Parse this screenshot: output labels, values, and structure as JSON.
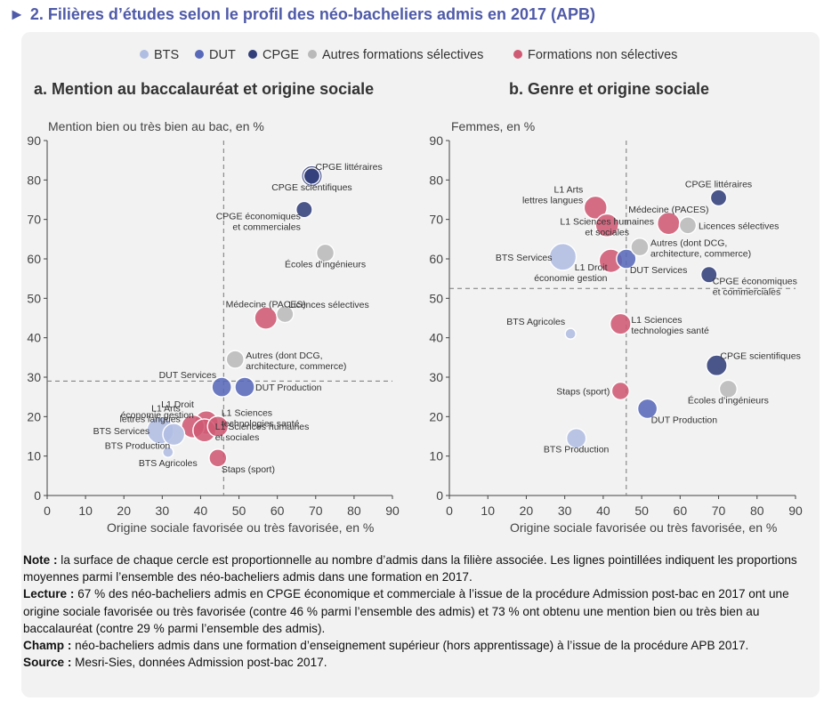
{
  "figure_title": "2. Filières d’études selon le profil des néo-bacheliers admis en 2017 (APB)",
  "legend": [
    {
      "label": "BTS",
      "color": "#b0bde2"
    },
    {
      "label": "DUT",
      "color": "#5869ba"
    },
    {
      "label": "CPGE",
      "color": "#323f7a"
    },
    {
      "label": "Autres formations sélectives",
      "color": "#b9b9b9"
    },
    {
      "label": "Formations non sélectives",
      "color": "#cf5a74"
    }
  ],
  "chart_data": [
    {
      "type": "scatter",
      "title": "a. Mention au baccalauréat et origine sociale",
      "xlabel": "Origine sociale favorisée ou très favorisée, en %",
      "ylabel": "Mention bien ou très bien au bac, en %",
      "xlim": [
        0,
        90
      ],
      "ylim": [
        0,
        90
      ],
      "xticks": [
        "0",
        "10",
        "20",
        "30",
        "40",
        "50",
        "60",
        "70",
        "80",
        "90"
      ],
      "yticks": [
        "0",
        "10",
        "20",
        "30",
        "40",
        "50",
        "60",
        "70",
        "80",
        "90"
      ],
      "ref_x": 46,
      "ref_y": 29,
      "points": [
        {
          "label": "CPGE littéraires",
          "group": "CPGE",
          "x": 69,
          "y": 81,
          "size": 1.1,
          "label_pos": "above-right"
        },
        {
          "label": "CPGE scientifiques",
          "group": "CPGE",
          "x": 69,
          "y": 81,
          "size": 1.8,
          "label_pos": "below"
        },
        {
          "label": "CPGE économiques et commerciales",
          "group": "CPGE",
          "x": 67,
          "y": 72.5,
          "size": 1.1,
          "label_pos": "below-left"
        },
        {
          "label": "Écoles d’ingénieurs",
          "group": "Autres formations sélectives",
          "x": 72.5,
          "y": 61.5,
          "size": 1.3,
          "label_pos": "below"
        },
        {
          "label": "Médecine (PACES)",
          "group": "Formations non sélectives",
          "x": 57,
          "y": 45,
          "size": 2.1,
          "label_pos": "above"
        },
        {
          "label": "Licences sélectives",
          "group": "Autres formations sélectives",
          "x": 62,
          "y": 46,
          "size": 1.2,
          "label_pos": "above-right"
        },
        {
          "label": "Autres (dont DCG, architecture, commerce)",
          "group": "Autres formations sélectives",
          "x": 49,
          "y": 34.5,
          "size": 1.3,
          "label_pos": "right"
        },
        {
          "label": "DUT Services",
          "group": "DUT",
          "x": 45.5,
          "y": 27.5,
          "size": 1.6,
          "label_pos": "above-left"
        },
        {
          "label": "DUT Production",
          "group": "DUT",
          "x": 51.5,
          "y": 27.5,
          "size": 1.6,
          "label_pos": "right"
        },
        {
          "label": "L1 Droit économie gestion",
          "group": "Formations non sélectives",
          "x": 41.5,
          "y": 18.5,
          "size": 2.3,
          "label_pos": "upper-left"
        },
        {
          "label": "L1 Arts lettres langues",
          "group": "Formations non sélectives",
          "x": 38,
          "y": 17.5,
          "size": 2.2,
          "label_pos": "upper-left"
        },
        {
          "label": "BTS Services",
          "group": "BTS",
          "x": 29.5,
          "y": 16.5,
          "size": 3.0,
          "label_pos": "left"
        },
        {
          "label": "BTS Production",
          "group": "BTS",
          "x": 33,
          "y": 15.5,
          "size": 2.0,
          "label_pos": "below-left"
        },
        {
          "label": "L1 Sciences technologies santé",
          "group": "Formations non sélectives",
          "x": 44.5,
          "y": 17.5,
          "size": 1.8,
          "label_pos": "above-right"
        },
        {
          "label": "L1 Sciences humaines et sociales",
          "group": "Formations non sélectives",
          "x": 41,
          "y": 16.5,
          "size": 2.2,
          "label_pos": "right"
        },
        {
          "label": "BTS Agricoles",
          "group": "BTS",
          "x": 31.5,
          "y": 11,
          "size": 1.0,
          "label_pos": "below"
        },
        {
          "label": "Staps (sport)",
          "group": "Formations non sélectives",
          "x": 44.5,
          "y": 9.5,
          "size": 1.3,
          "label_pos": "below-right"
        }
      ]
    },
    {
      "type": "scatter",
      "title": "b. Genre et origine sociale",
      "xlabel": "Origine sociale favorisée ou très favorisée, en %",
      "ylabel": "Femmes, en %",
      "xlim": [
        0,
        90
      ],
      "ylim": [
        0,
        90
      ],
      "xticks": [
        "0",
        "10",
        "20",
        "30",
        "40",
        "50",
        "60",
        "70",
        "80",
        "90"
      ],
      "yticks": [
        "0",
        "10",
        "20",
        "30",
        "40",
        "50",
        "60",
        "70",
        "80",
        "90"
      ],
      "ref_x": 46,
      "ref_y": 52.5,
      "points": [
        {
          "label": "CPGE littéraires",
          "group": "CPGE",
          "x": 70,
          "y": 75.5,
          "size": 1.1,
          "label_pos": "above"
        },
        {
          "label": "L1 Arts lettres langues",
          "group": "Formations non sélectives",
          "x": 38,
          "y": 73,
          "size": 2.2,
          "label_pos": "upper-left"
        },
        {
          "label": "Médecine (PACES)",
          "group": "Formations non sélectives",
          "x": 57,
          "y": 69,
          "size": 2.1,
          "label_pos": "above"
        },
        {
          "label": "Licences sélectives",
          "group": "Autres formations sélectives",
          "x": 62,
          "y": 68.5,
          "size": 1.2,
          "label_pos": "right"
        },
        {
          "label": "L1 Sciences humaines et sociales",
          "group": "Formations non sélectives",
          "x": 41,
          "y": 68.5,
          "size": 2.2,
          "label_pos": "center"
        },
        {
          "label": "Autres (dont DCG, architecture, commerce)",
          "group": "Autres formations sélectives",
          "x": 49.5,
          "y": 63,
          "size": 1.3,
          "label_pos": "right"
        },
        {
          "label": "BTS Services",
          "group": "BTS",
          "x": 29.5,
          "y": 60.5,
          "size": 3.0,
          "label_pos": "left"
        },
        {
          "label": "L1 Droit économie gestion",
          "group": "Formations non sélectives",
          "x": 42,
          "y": 59.5,
          "size": 2.3,
          "label_pos": "below-left"
        },
        {
          "label": "DUT Services",
          "group": "DUT",
          "x": 46,
          "y": 60,
          "size": 1.6,
          "label_pos": "below-right"
        },
        {
          "label": "CPGE économiques et commerciales",
          "group": "CPGE",
          "x": 67.5,
          "y": 56,
          "size": 1.1,
          "label_pos": "below-right"
        },
        {
          "label": "BTS Agricoles",
          "group": "BTS",
          "x": 31.5,
          "y": 41,
          "size": 1.0,
          "label_pos": "above-left"
        },
        {
          "label": "L1 Sciences technologies santé",
          "group": "Formations non sélectives",
          "x": 44.5,
          "y": 43.5,
          "size": 1.8,
          "label_pos": "right"
        },
        {
          "label": "CPGE scientifiques",
          "group": "CPGE",
          "x": 69.5,
          "y": 33,
          "size": 1.8,
          "label_pos": "above-right"
        },
        {
          "label": "Écoles d’ingénieurs",
          "group": "Autres formations sélectives",
          "x": 72.5,
          "y": 27,
          "size": 1.3,
          "label_pos": "below"
        },
        {
          "label": "Staps (sport)",
          "group": "Formations non sélectives",
          "x": 44.5,
          "y": 26.5,
          "size": 1.3,
          "label_pos": "left"
        },
        {
          "label": "DUT Production",
          "group": "DUT",
          "x": 51.5,
          "y": 22,
          "size": 1.6,
          "label_pos": "below-right"
        },
        {
          "label": "BTS Production",
          "group": "BTS",
          "x": 33,
          "y": 14.5,
          "size": 1.6,
          "label_pos": "below"
        }
      ]
    }
  ],
  "notes": {
    "note_label": "Note :",
    "note_text": " la surface de chaque cercle est proportionnelle au nombre d’admis dans la filière associée. Les lignes pointillées indiquent les proportions moyennes parmi l’ensemble des néo-bacheliers admis dans une formation en 2017.",
    "lecture_label": "Lecture :",
    "lecture_text": " 67 % des néo-bacheliers admis en CPGE économique et commerciale à l’issue de la procédure Admission post-bac en 2017 ont une origine sociale favorisée ou très favorisée (contre 46 % parmi l’ensemble des admis) et 73 % ont obtenu une mention bien ou très bien au baccalauréat (contre 29 % parmi l’ensemble des admis).",
    "champ_label": "Champ :",
    "champ_text": " néo-bacheliers admis dans une formation d’enseignement supérieur (hors apprentissage) à l’issue de la procédure APB 2017.",
    "source_label": "Source :",
    "source_text": " Mesri-Sies, données Admission post-bac 2017."
  }
}
